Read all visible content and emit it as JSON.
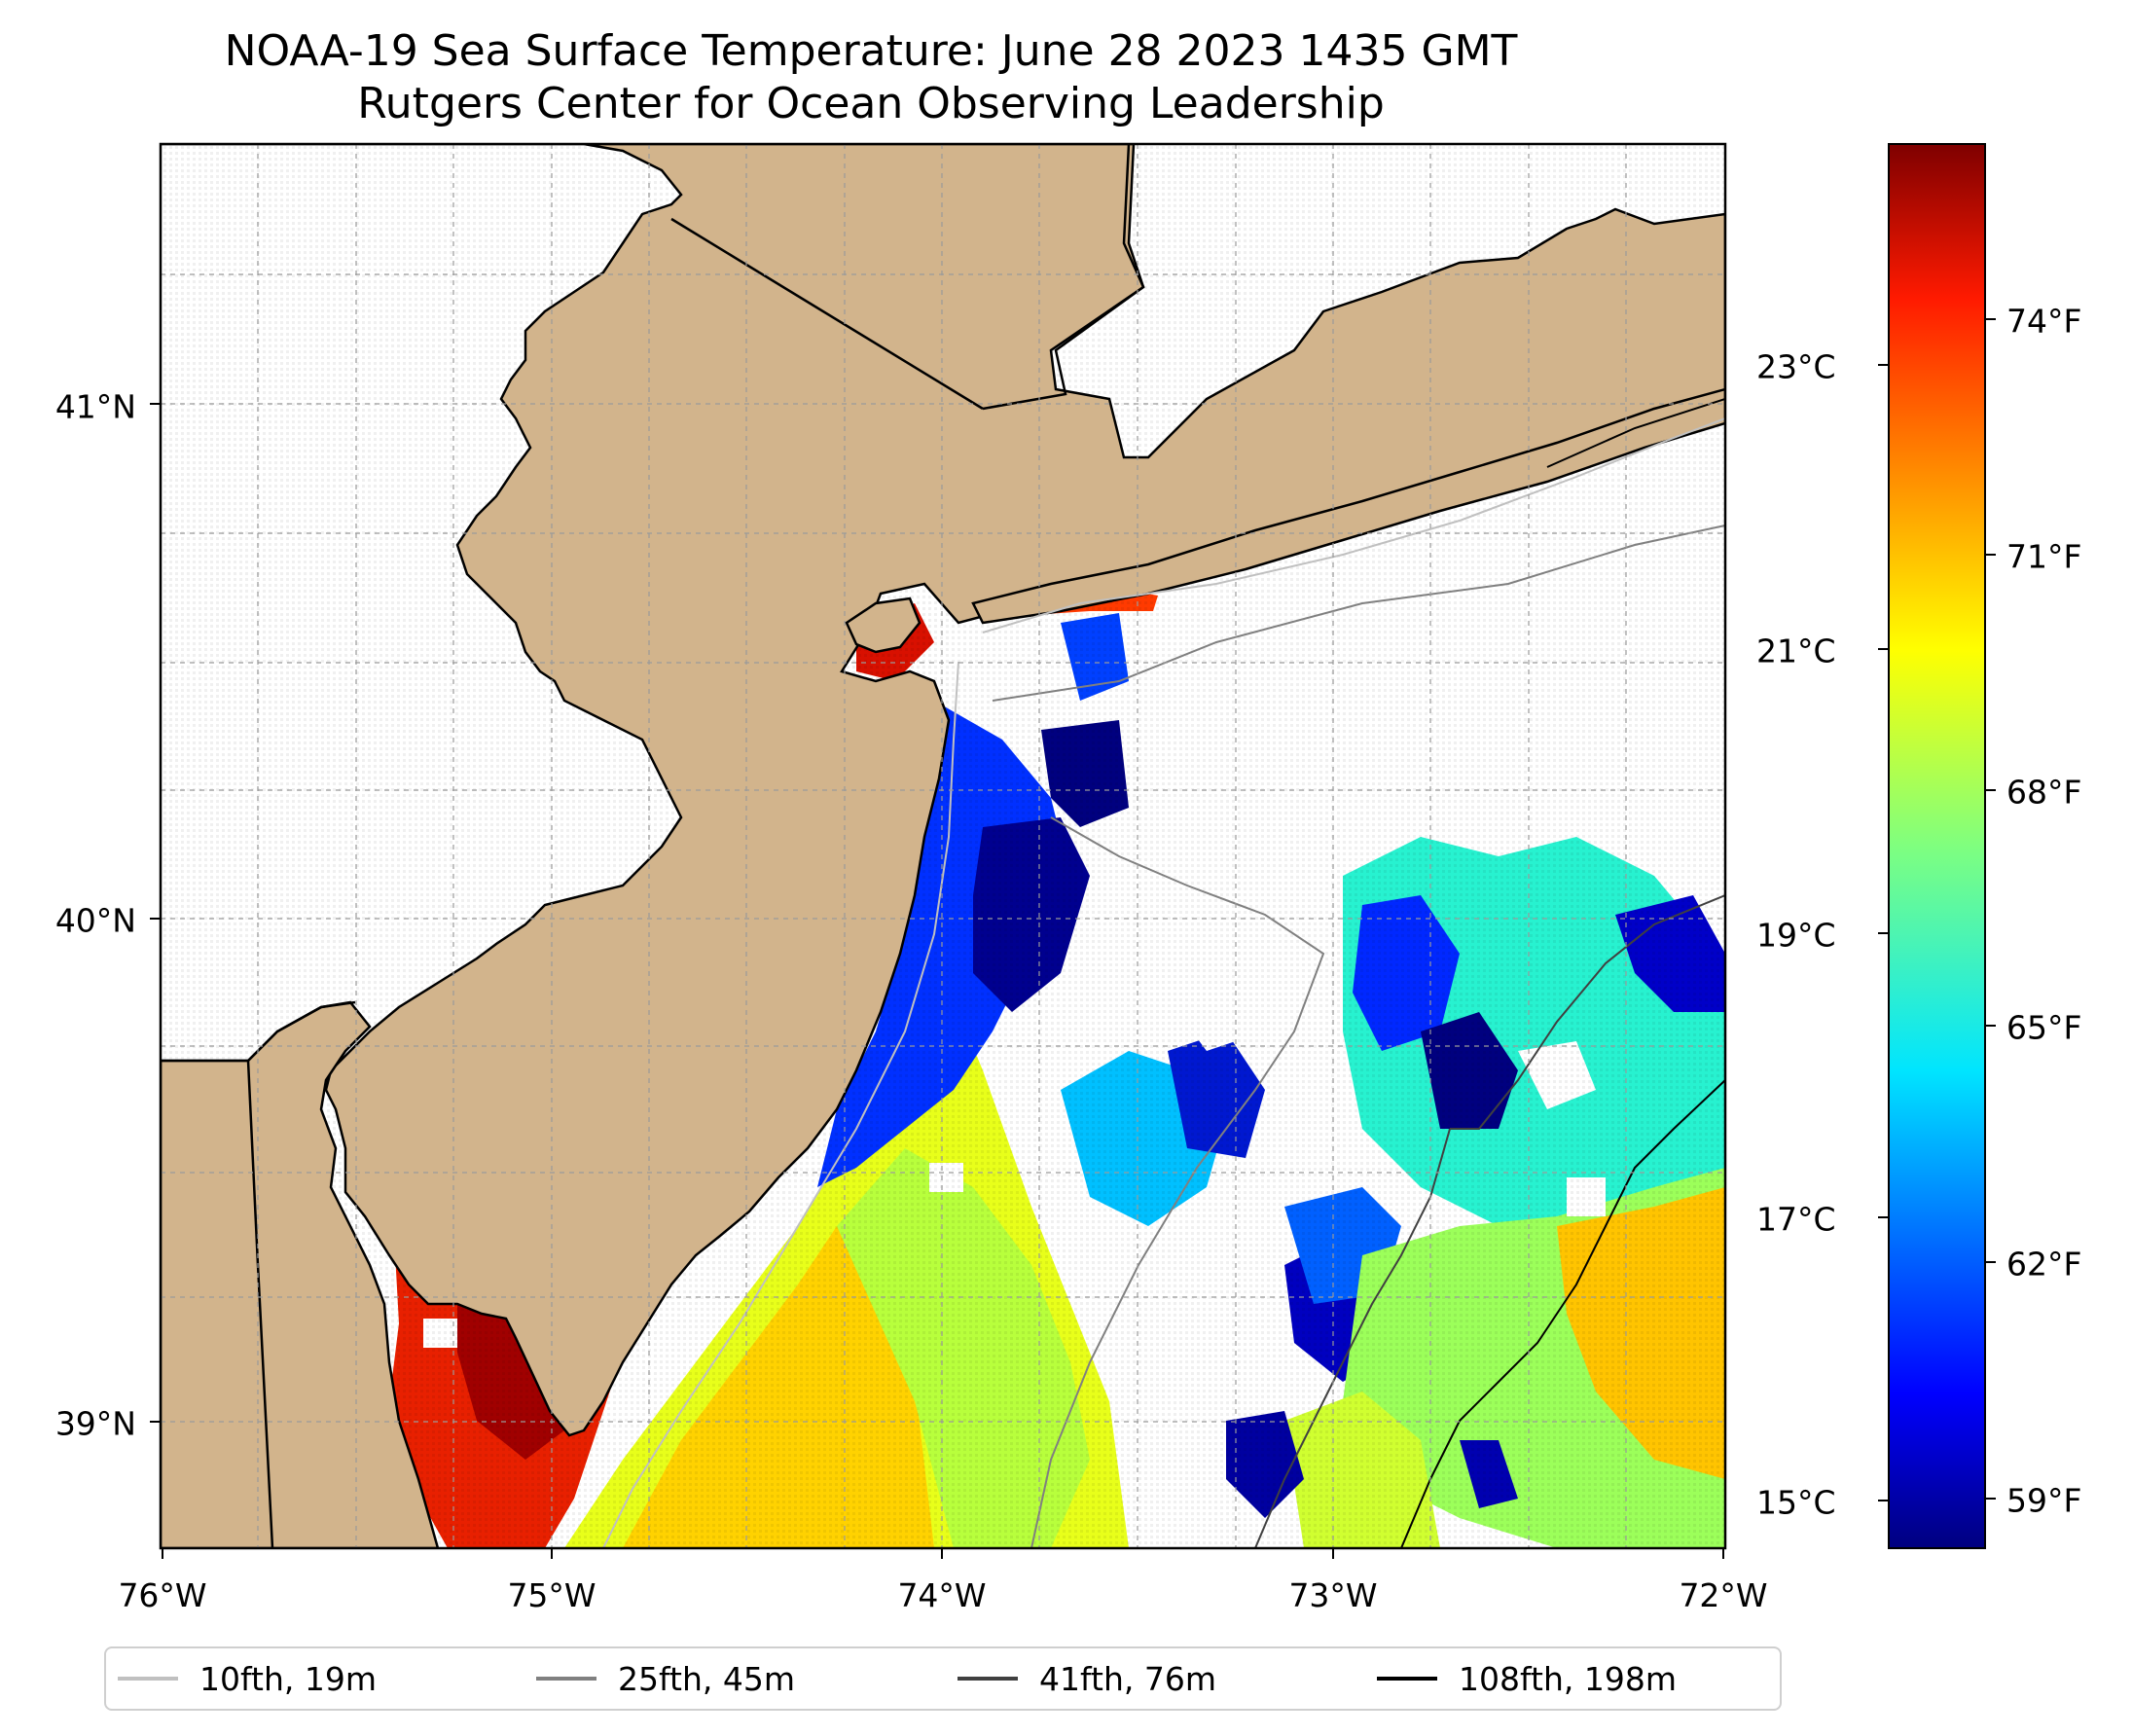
{
  "title": {
    "line1": "NOAA-19 Sea Surface Temperature: June 28 2023 1435 GMT",
    "line2": "Rutgers Center for Ocean Observing Leadership"
  },
  "map": {
    "lon_ticks": [
      "76°W",
      "75°W",
      "74°W",
      "73°W",
      "72°W"
    ],
    "lat_ticks": [
      "41°N",
      "40°N",
      "39°N"
    ],
    "land_color": "#d2b48c",
    "water_color": "#ffffff",
    "coast_color": "#000000",
    "gridlines": true
  },
  "colorbar": {
    "colormap": "jet",
    "celsius_labels": [
      "23°C",
      "21°C",
      "19°C",
      "17°C",
      "15°C"
    ],
    "fahrenheit_labels": [
      "74°F",
      "71°F",
      "68°F",
      "65°F",
      "62°F",
      "59°F"
    ]
  },
  "legend": {
    "items": [
      {
        "label": "10fth, 19m",
        "color": "#c0c0c0"
      },
      {
        "label": "25fth, 45m",
        "color": "#808080"
      },
      {
        "label": "41fth, 76m",
        "color": "#404040"
      },
      {
        "label": "108fth, 198m",
        "color": "#000000"
      }
    ]
  }
}
